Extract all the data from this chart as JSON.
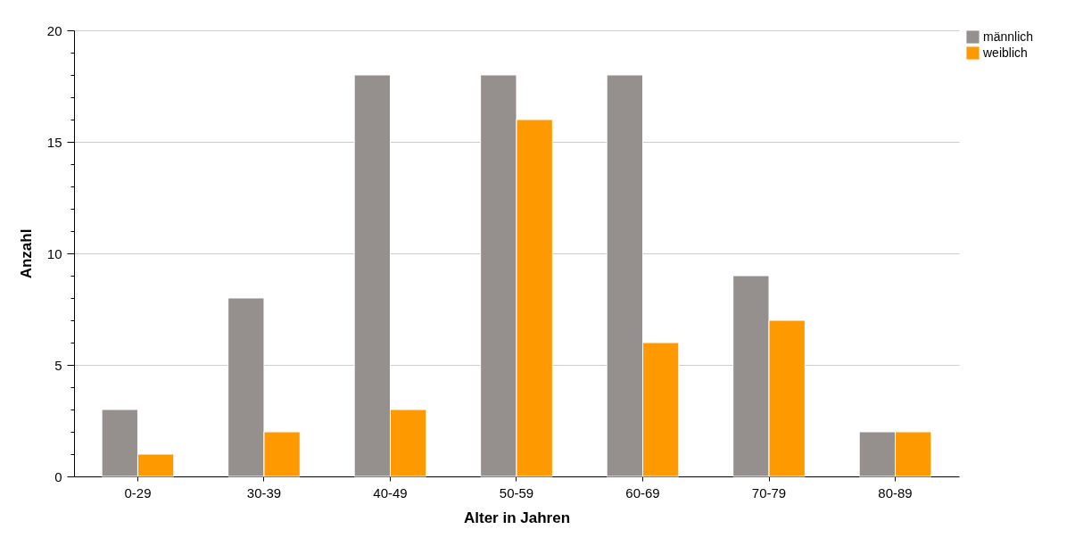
{
  "chart_data": {
    "type": "bar",
    "xlabel": "Alter in Jahren",
    "ylabel": "Anzahl",
    "categories": [
      "0-29",
      "30-39",
      "40-49",
      "50-59",
      "60-69",
      "70-79",
      "80-89"
    ],
    "series": [
      {
        "name": "männlich",
        "color": "#958f8d",
        "values": [
          3,
          8,
          18,
          18,
          18,
          9,
          2
        ]
      },
      {
        "name": "weiblich",
        "color": "#ff9900",
        "values": [
          1,
          2,
          3,
          16,
          6,
          7,
          2
        ]
      }
    ],
    "ylim": [
      0,
      20
    ],
    "yticks": [
      0,
      {
        "value": 1,
        "label": null
      },
      {
        "value": 2,
        "label": null
      },
      {
        "value": 3,
        "label": null
      },
      {
        "value": 4,
        "label": null
      },
      5,
      {
        "value": 6,
        "label": null
      },
      {
        "value": 7,
        "label": null
      },
      {
        "value": 8,
        "label": null
      },
      {
        "value": 9,
        "label": null
      },
      10,
      {
        "value": 11,
        "label": null
      },
      {
        "value": 12,
        "label": null
      },
      {
        "value": 13,
        "label": null
      },
      {
        "value": 14,
        "label": null
      },
      15,
      {
        "value": 16,
        "label": null
      },
      {
        "value": 17,
        "label": null
      },
      {
        "value": 18,
        "label": null
      },
      {
        "value": 19,
        "label": null
      },
      20
    ],
    "grid": "y",
    "legend": "right"
  }
}
